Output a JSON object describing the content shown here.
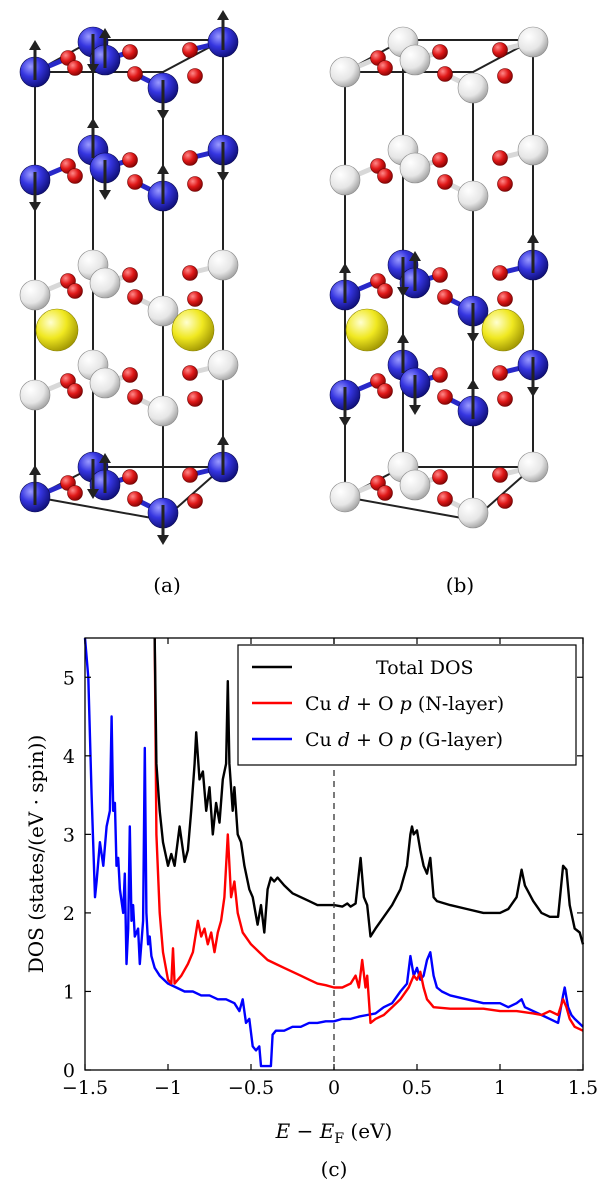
{
  "panels": {
    "a": {
      "caption": "(a)"
    },
    "b": {
      "caption": "(b)"
    },
    "c": {
      "caption": "(c)"
    }
  },
  "colors": {
    "cu_spin": "#2a2ad0",
    "cu_nonmag": "#e8e8e8",
    "oxygen": "#d01010",
    "cation": "#e8e010",
    "total": "#000000",
    "n_layer": "#ff0000",
    "g_layer": "#0000ff"
  },
  "chart_data": {
    "type": "line",
    "xlabel_parts": [
      "E",
      " − ",
      "E",
      "F",
      " (eV)"
    ],
    "ylabel": "DOS (states/(eV · spin))",
    "xlim": [
      -1.5,
      1.5
    ],
    "ylim": [
      0,
      5.5
    ],
    "xticks": [
      -1.5,
      -1,
      -0.5,
      0,
      0.5,
      1,
      1.5
    ],
    "xtick_labels": [
      "−1.5",
      "−1",
      "−0.5",
      "0",
      "0.5",
      "1",
      "1.5"
    ],
    "yticks": [
      0,
      1,
      2,
      3,
      4,
      5
    ],
    "ytick_labels": [
      "0",
      "1",
      "2",
      "3",
      "4",
      "5"
    ],
    "fermi_line_x": 0,
    "legend_position": "top-right",
    "legend_entries": [
      "Total DOS",
      "Cu d + O p (N-layer)",
      "Cu d + O p (G-layer)"
    ],
    "series": [
      {
        "name": "Total DOS",
        "color": "#000000",
        "points": [
          [
            -1.08,
            5.5
          ],
          [
            -1.07,
            3.9
          ],
          [
            -1.05,
            3.3
          ],
          [
            -1.03,
            2.9
          ],
          [
            -1.0,
            2.6
          ],
          [
            -0.98,
            2.75
          ],
          [
            -0.96,
            2.6
          ],
          [
            -0.93,
            3.1
          ],
          [
            -0.9,
            2.65
          ],
          [
            -0.88,
            2.8
          ],
          [
            -0.86,
            3.3
          ],
          [
            -0.84,
            3.9
          ],
          [
            -0.83,
            4.3
          ],
          [
            -0.81,
            3.7
          ],
          [
            -0.79,
            3.8
          ],
          [
            -0.77,
            3.3
          ],
          [
            -0.75,
            3.6
          ],
          [
            -0.73,
            3.0
          ],
          [
            -0.71,
            3.4
          ],
          [
            -0.69,
            3.15
          ],
          [
            -0.67,
            3.7
          ],
          [
            -0.65,
            3.9
          ],
          [
            -0.64,
            4.95
          ],
          [
            -0.63,
            3.9
          ],
          [
            -0.61,
            3.3
          ],
          [
            -0.6,
            3.6
          ],
          [
            -0.58,
            3.0
          ],
          [
            -0.56,
            2.9
          ],
          [
            -0.54,
            2.6
          ],
          [
            -0.51,
            2.3
          ],
          [
            -0.49,
            2.2
          ],
          [
            -0.46,
            1.85
          ],
          [
            -0.44,
            2.1
          ],
          [
            -0.42,
            1.75
          ],
          [
            -0.4,
            2.3
          ],
          [
            -0.38,
            2.45
          ],
          [
            -0.36,
            2.4
          ],
          [
            -0.34,
            2.45
          ],
          [
            -0.3,
            2.35
          ],
          [
            -0.25,
            2.25
          ],
          [
            -0.2,
            2.2
          ],
          [
            -0.15,
            2.15
          ],
          [
            -0.1,
            2.1
          ],
          [
            -0.05,
            2.1
          ],
          [
            0.0,
            2.1
          ],
          [
            0.05,
            2.08
          ],
          [
            0.08,
            2.12
          ],
          [
            0.1,
            2.08
          ],
          [
            0.13,
            2.12
          ],
          [
            0.16,
            2.7
          ],
          [
            0.18,
            2.2
          ],
          [
            0.2,
            2.1
          ],
          [
            0.22,
            1.7
          ],
          [
            0.25,
            1.8
          ],
          [
            0.3,
            1.95
          ],
          [
            0.35,
            2.1
          ],
          [
            0.4,
            2.3
          ],
          [
            0.44,
            2.6
          ],
          [
            0.46,
            3.0
          ],
          [
            0.47,
            3.1
          ],
          [
            0.48,
            3.0
          ],
          [
            0.5,
            3.05
          ],
          [
            0.52,
            2.8
          ],
          [
            0.54,
            2.6
          ],
          [
            0.56,
            2.5
          ],
          [
            0.58,
            2.7
          ],
          [
            0.6,
            2.2
          ],
          [
            0.62,
            2.15
          ],
          [
            0.7,
            2.1
          ],
          [
            0.8,
            2.05
          ],
          [
            0.9,
            2.0
          ],
          [
            1.0,
            2.0
          ],
          [
            1.05,
            2.05
          ],
          [
            1.1,
            2.2
          ],
          [
            1.13,
            2.55
          ],
          [
            1.15,
            2.35
          ],
          [
            1.2,
            2.15
          ],
          [
            1.25,
            2.0
          ],
          [
            1.3,
            1.95
          ],
          [
            1.35,
            1.95
          ],
          [
            1.38,
            2.6
          ],
          [
            1.4,
            2.55
          ],
          [
            1.42,
            2.1
          ],
          [
            1.45,
            1.8
          ],
          [
            1.48,
            1.75
          ],
          [
            1.5,
            1.6
          ]
        ]
      },
      {
        "name": "Cu d + O p (N-layer)",
        "color": "#ff0000",
        "points": [
          [
            -1.08,
            5.5
          ],
          [
            -1.07,
            3.0
          ],
          [
            -1.05,
            2.0
          ],
          [
            -1.03,
            1.5
          ],
          [
            -1.0,
            1.15
          ],
          [
            -0.98,
            1.1
          ],
          [
            -0.97,
            1.55
          ],
          [
            -0.96,
            1.1
          ],
          [
            -0.92,
            1.2
          ],
          [
            -0.88,
            1.35
          ],
          [
            -0.85,
            1.5
          ],
          [
            -0.82,
            1.9
          ],
          [
            -0.8,
            1.7
          ],
          [
            -0.78,
            1.8
          ],
          [
            -0.76,
            1.6
          ],
          [
            -0.74,
            1.75
          ],
          [
            -0.72,
            1.5
          ],
          [
            -0.7,
            1.75
          ],
          [
            -0.68,
            1.9
          ],
          [
            -0.66,
            2.2
          ],
          [
            -0.64,
            3.0
          ],
          [
            -0.62,
            2.2
          ],
          [
            -0.6,
            2.4
          ],
          [
            -0.58,
            2.0
          ],
          [
            -0.55,
            1.75
          ],
          [
            -0.5,
            1.6
          ],
          [
            -0.45,
            1.5
          ],
          [
            -0.4,
            1.4
          ],
          [
            -0.35,
            1.35
          ],
          [
            -0.3,
            1.3
          ],
          [
            -0.25,
            1.25
          ],
          [
            -0.2,
            1.2
          ],
          [
            -0.15,
            1.15
          ],
          [
            -0.1,
            1.1
          ],
          [
            -0.05,
            1.08
          ],
          [
            0.0,
            1.05
          ],
          [
            0.05,
            1.05
          ],
          [
            0.1,
            1.1
          ],
          [
            0.13,
            1.2
          ],
          [
            0.15,
            1.05
          ],
          [
            0.17,
            1.4
          ],
          [
            0.19,
            1.05
          ],
          [
            0.2,
            1.2
          ],
          [
            0.22,
            0.6
          ],
          [
            0.25,
            0.65
          ],
          [
            0.3,
            0.7
          ],
          [
            0.35,
            0.8
          ],
          [
            0.4,
            0.9
          ],
          [
            0.45,
            1.05
          ],
          [
            0.48,
            1.2
          ],
          [
            0.5,
            1.15
          ],
          [
            0.52,
            1.25
          ],
          [
            0.54,
            1.05
          ],
          [
            0.56,
            0.9
          ],
          [
            0.58,
            0.85
          ],
          [
            0.6,
            0.8
          ],
          [
            0.7,
            0.78
          ],
          [
            0.8,
            0.78
          ],
          [
            0.9,
            0.78
          ],
          [
            1.0,
            0.75
          ],
          [
            1.1,
            0.75
          ],
          [
            1.2,
            0.72
          ],
          [
            1.25,
            0.7
          ],
          [
            1.3,
            0.75
          ],
          [
            1.35,
            0.7
          ],
          [
            1.38,
            0.9
          ],
          [
            1.4,
            0.8
          ],
          [
            1.42,
            0.65
          ],
          [
            1.45,
            0.55
          ],
          [
            1.5,
            0.5
          ]
        ]
      },
      {
        "name": "Cu d + O p (G-layer)",
        "color": "#0000ff",
        "points": [
          [
            -1.5,
            5.5
          ],
          [
            -1.48,
            5.0
          ],
          [
            -1.46,
            3.5
          ],
          [
            -1.44,
            2.2
          ],
          [
            -1.43,
            2.4
          ],
          [
            -1.41,
            2.9
          ],
          [
            -1.39,
            2.6
          ],
          [
            -1.37,
            3.1
          ],
          [
            -1.35,
            3.3
          ],
          [
            -1.34,
            4.5
          ],
          [
            -1.33,
            3.3
          ],
          [
            -1.32,
            3.4
          ],
          [
            -1.31,
            2.6
          ],
          [
            -1.3,
            2.7
          ],
          [
            -1.29,
            2.3
          ],
          [
            -1.27,
            2.0
          ],
          [
            -1.26,
            2.5
          ],
          [
            -1.25,
            1.35
          ],
          [
            -1.24,
            1.8
          ],
          [
            -1.23,
            3.1
          ],
          [
            -1.22,
            1.9
          ],
          [
            -1.21,
            2.1
          ],
          [
            -1.2,
            1.7
          ],
          [
            -1.18,
            1.8
          ],
          [
            -1.17,
            1.35
          ],
          [
            -1.15,
            1.9
          ],
          [
            -1.14,
            4.1
          ],
          [
            -1.13,
            2.0
          ],
          [
            -1.12,
            1.6
          ],
          [
            -1.11,
            1.7
          ],
          [
            -1.1,
            1.45
          ],
          [
            -1.08,
            1.3
          ],
          [
            -1.05,
            1.2
          ],
          [
            -1.0,
            1.1
          ],
          [
            -0.95,
            1.05
          ],
          [
            -0.9,
            1.0
          ],
          [
            -0.85,
            1.0
          ],
          [
            -0.8,
            0.95
          ],
          [
            -0.75,
            0.95
          ],
          [
            -0.7,
            0.9
          ],
          [
            -0.65,
            0.9
          ],
          [
            -0.6,
            0.85
          ],
          [
            -0.57,
            0.75
          ],
          [
            -0.55,
            0.9
          ],
          [
            -0.53,
            0.6
          ],
          [
            -0.51,
            0.65
          ],
          [
            -0.49,
            0.3
          ],
          [
            -0.47,
            0.25
          ],
          [
            -0.45,
            0.3
          ],
          [
            -0.44,
            0.05
          ],
          [
            -0.4,
            0.05
          ],
          [
            -0.38,
            0.05
          ],
          [
            -0.37,
            0.45
          ],
          [
            -0.35,
            0.5
          ],
          [
            -0.3,
            0.5
          ],
          [
            -0.25,
            0.55
          ],
          [
            -0.2,
            0.55
          ],
          [
            -0.15,
            0.6
          ],
          [
            -0.1,
            0.6
          ],
          [
            -0.05,
            0.62
          ],
          [
            0.0,
            0.62
          ],
          [
            0.05,
            0.65
          ],
          [
            0.1,
            0.65
          ],
          [
            0.15,
            0.68
          ],
          [
            0.2,
            0.7
          ],
          [
            0.25,
            0.72
          ],
          [
            0.3,
            0.8
          ],
          [
            0.35,
            0.85
          ],
          [
            0.4,
            1.0
          ],
          [
            0.44,
            1.1
          ],
          [
            0.46,
            1.45
          ],
          [
            0.48,
            1.2
          ],
          [
            0.5,
            1.3
          ],
          [
            0.52,
            1.15
          ],
          [
            0.54,
            1.2
          ],
          [
            0.56,
            1.4
          ],
          [
            0.58,
            1.5
          ],
          [
            0.6,
            1.2
          ],
          [
            0.62,
            1.05
          ],
          [
            0.65,
            1.0
          ],
          [
            0.7,
            0.95
          ],
          [
            0.8,
            0.9
          ],
          [
            0.9,
            0.85
          ],
          [
            1.0,
            0.85
          ],
          [
            1.05,
            0.8
          ],
          [
            1.1,
            0.85
          ],
          [
            1.13,
            0.9
          ],
          [
            1.15,
            0.8
          ],
          [
            1.2,
            0.75
          ],
          [
            1.25,
            0.7
          ],
          [
            1.3,
            0.65
          ],
          [
            1.35,
            0.6
          ],
          [
            1.38,
            0.95
          ],
          [
            1.39,
            1.05
          ],
          [
            1.41,
            0.8
          ],
          [
            1.43,
            0.7
          ],
          [
            1.45,
            0.65
          ],
          [
            1.5,
            0.55
          ]
        ]
      }
    ]
  }
}
